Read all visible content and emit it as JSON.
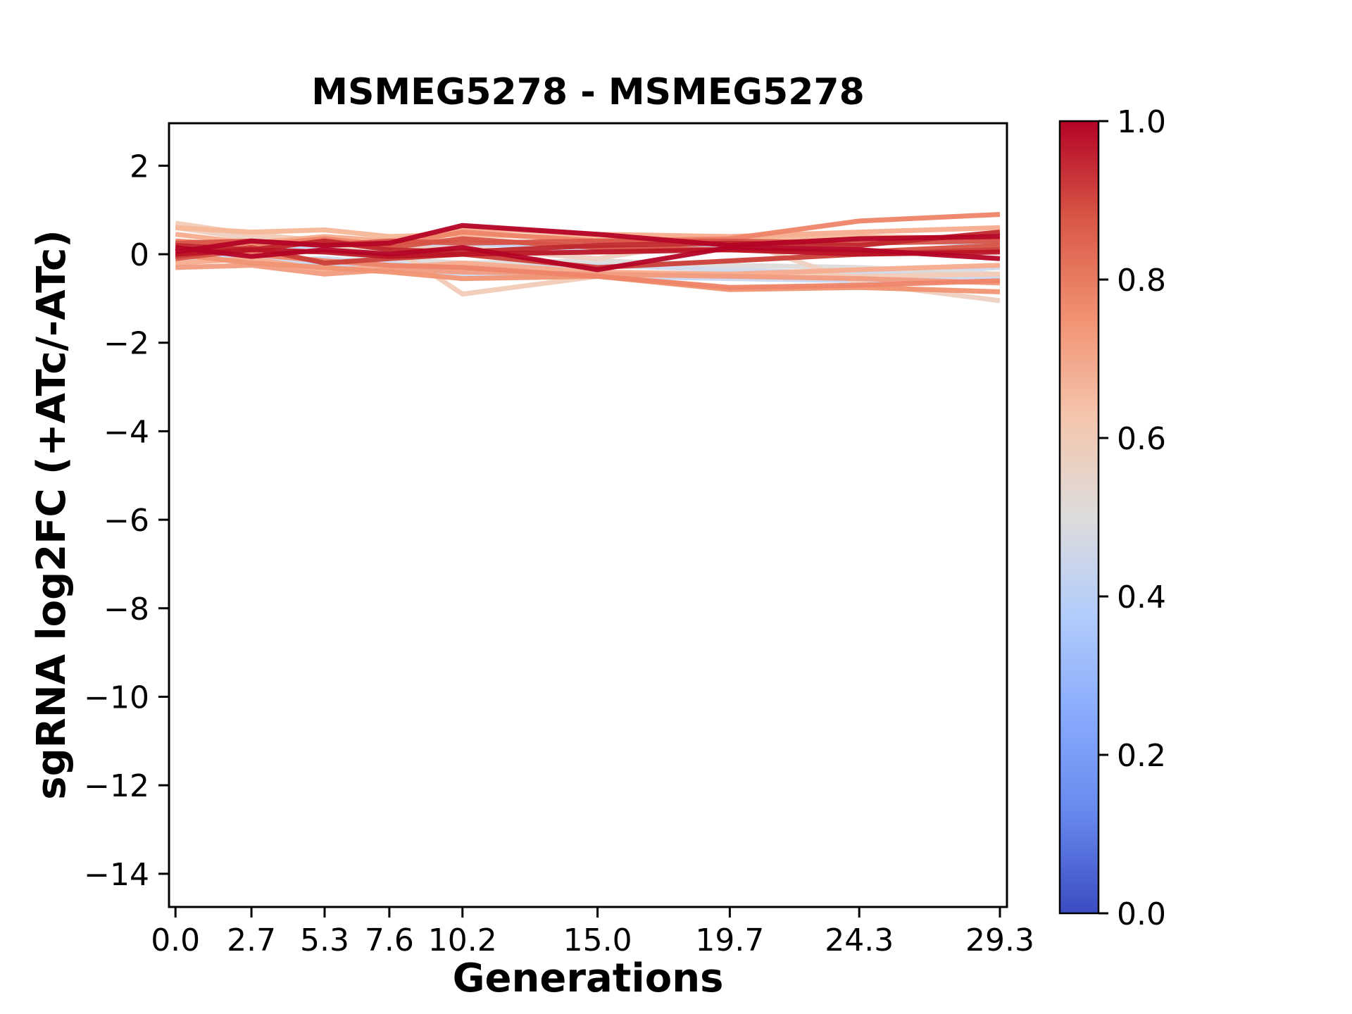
{
  "title": "MSMEG5278 - MSMEG5278",
  "chart_data": {
    "type": "line",
    "title": "MSMEG5278 - MSMEG5278",
    "xlabel": "Generations",
    "ylabel": "sgRNA log2FC (+ATc/-ATc)",
    "x": [
      0.0,
      2.7,
      5.3,
      7.6,
      10.2,
      15.0,
      19.7,
      24.3,
      29.3
    ],
    "x_tick_labels": [
      "0.0",
      "2.7",
      "5.3",
      "7.6",
      "10.2",
      "15.0",
      "19.7",
      "24.3",
      "29.3"
    ],
    "y_ticks": [
      2,
      0,
      -2,
      -4,
      -6,
      -8,
      -10,
      -12,
      -14
    ],
    "y_tick_labels": [
      "2",
      "0",
      "−2",
      "−4",
      "−6",
      "−8",
      "−10",
      "−12",
      "−14"
    ],
    "xlim": [
      -0.23,
      29.55
    ],
    "ylim": [
      -14.75,
      2.96
    ],
    "grid": false,
    "legend": "none",
    "line_width": 7,
    "series": [
      {
        "colormap_value": 1.0,
        "color": "#b40426",
        "values": [
          0.05,
          0.3,
          0.2,
          0.25,
          0.65,
          0.45,
          0.2,
          0.35,
          0.4
        ]
      },
      {
        "colormap_value": 0.98,
        "color": "#b40426",
        "values": [
          0.15,
          -0.05,
          0.1,
          0.0,
          0.15,
          -0.35,
          0.15,
          0.1,
          -0.1
        ]
      },
      {
        "colormap_value": 0.97,
        "color": "#bb1526",
        "values": [
          0.0,
          0.1,
          0.05,
          -0.05,
          0.0,
          0.05,
          0.1,
          0.0,
          0.05
        ]
      },
      {
        "colormap_value": 0.95,
        "color": "#c0282d",
        "values": [
          0.2,
          0.1,
          0.3,
          0.1,
          0.05,
          0.2,
          0.25,
          0.2,
          0.5
        ]
      },
      {
        "colormap_value": 0.92,
        "color": "#cb3e38",
        "values": [
          -0.05,
          0.15,
          -0.2,
          -0.1,
          0.0,
          -0.3,
          -0.15,
          0.0,
          0.1
        ]
      },
      {
        "colormap_value": 0.9,
        "color": "#d65244",
        "values": [
          -0.1,
          0.1,
          0.3,
          0.15,
          0.35,
          0.15,
          0.1,
          0.05,
          0.2
        ]
      },
      {
        "colormap_value": 0.88,
        "color": "#d8564a",
        "values": [
          0.25,
          0.3,
          0.2,
          0.3,
          0.25,
          0.3,
          0.3,
          0.25,
          0.3
        ]
      },
      {
        "colormap_value": 0.8,
        "color": "#ee8468",
        "values": [
          0.3,
          0.2,
          0.35,
          0.2,
          0.5,
          0.3,
          0.35,
          0.75,
          0.9
        ]
      },
      {
        "colormap_value": 0.8,
        "color": "#ee8468",
        "values": [
          0.15,
          0.0,
          -0.15,
          -0.25,
          -0.3,
          -0.5,
          -0.75,
          -0.7,
          -0.6
        ]
      },
      {
        "colormap_value": 0.78,
        "color": "#f09372",
        "values": [
          0.0,
          -0.2,
          -0.3,
          -0.4,
          -0.55,
          -0.5,
          -0.8,
          -0.75,
          -0.85
        ]
      },
      {
        "colormap_value": 0.76,
        "color": "#f19c80",
        "values": [
          -0.3,
          -0.25,
          -0.45,
          -0.35,
          -0.4,
          -0.45,
          -0.5,
          -0.55,
          -0.65
        ]
      },
      {
        "colormap_value": 0.72,
        "color": "#f7ac8e",
        "values": [
          0.45,
          0.25,
          0.4,
          0.3,
          0.6,
          0.45,
          0.4,
          0.5,
          0.6
        ]
      },
      {
        "colormap_value": 0.72,
        "color": "#f7ac8e",
        "values": [
          -0.2,
          -0.1,
          -0.35,
          -0.3,
          -0.2,
          -0.4,
          -0.45,
          -0.35,
          -0.25
        ]
      },
      {
        "colormap_value": 0.68,
        "color": "#f6b797",
        "values": [
          0.6,
          0.5,
          0.55,
          0.4,
          0.45,
          0.35,
          0.3,
          0.4,
          0.35
        ]
      },
      {
        "colormap_value": 0.62,
        "color": "#f2cbb7",
        "values": [
          0.7,
          0.45,
          0.3,
          0.2,
          -0.9,
          -0.5,
          -0.45,
          -0.5,
          -0.45
        ]
      },
      {
        "colormap_value": 0.6,
        "color": "#eed0c0",
        "values": [
          0.6,
          0.35,
          0.2,
          0.1,
          0.15,
          -0.1,
          0.38,
          -0.65,
          -1.05
        ]
      },
      {
        "colormap_value": 0.55,
        "color": "#dddcdb",
        "values": [
          0.3,
          0.1,
          0.05,
          -0.1,
          -0.2,
          -0.15,
          -0.25,
          -0.3,
          -0.45
        ]
      },
      {
        "colormap_value": 0.45,
        "color": "#cdd9ec",
        "values": [
          -0.05,
          -0.15,
          -0.1,
          -0.2,
          -0.3,
          -0.25,
          -0.35,
          -0.45,
          -0.3
        ]
      },
      {
        "colormap_value": 0.44,
        "color": "#cad7ef",
        "values": [
          0.0,
          -0.1,
          -0.2,
          -0.3,
          -0.45,
          -0.5,
          -0.55,
          -0.6,
          -0.5
        ]
      },
      {
        "colormap_value": 0.42,
        "color": "#c5d6f2",
        "values": [
          0.2,
          0.15,
          0.2,
          0.1,
          0.25,
          0.1,
          0.15,
          0.3,
          0.25
        ]
      }
    ],
    "colorbar": {
      "colormap": "coolwarm",
      "range": [
        0.0,
        1.0
      ],
      "tick_values": [
        1.0,
        0.8,
        0.6,
        0.4,
        0.2,
        0.0
      ],
      "tick_labels": [
        "1.0",
        "0.8",
        "0.6",
        "0.4",
        "0.2",
        "0.0"
      ],
      "stops": [
        {
          "offset": 0.0,
          "color": "#3b4cc0"
        },
        {
          "offset": 0.125,
          "color": "#6688ee"
        },
        {
          "offset": 0.25,
          "color": "#88abfd"
        },
        {
          "offset": 0.375,
          "color": "#b2ccfb"
        },
        {
          "offset": 0.5,
          "color": "#dddcdc"
        },
        {
          "offset": 0.625,
          "color": "#f4c6ad"
        },
        {
          "offset": 0.75,
          "color": "#f29274"
        },
        {
          "offset": 0.875,
          "color": "#d95847"
        },
        {
          "offset": 1.0,
          "color": "#b40426"
        }
      ]
    }
  }
}
